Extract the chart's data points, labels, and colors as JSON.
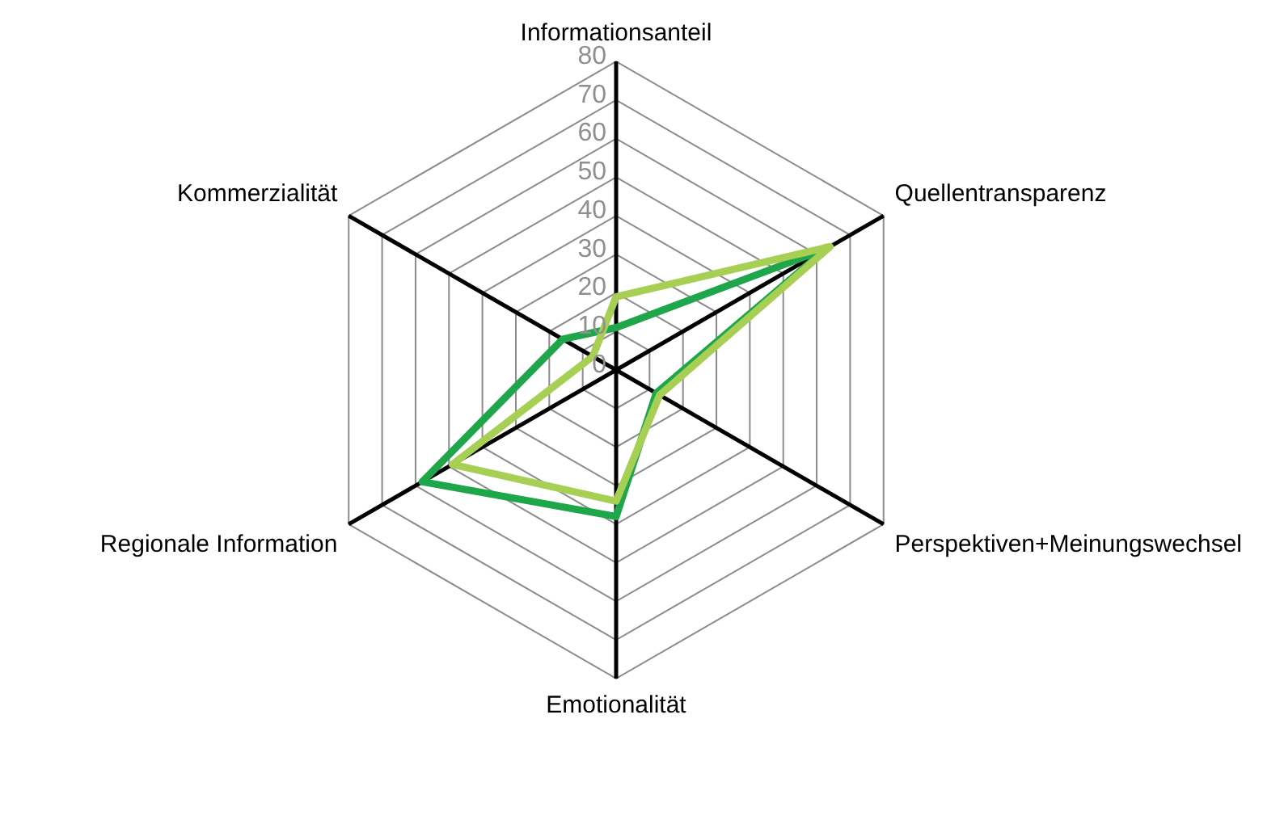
{
  "chart_data": {
    "type": "radar",
    "categories": [
      "Informationsanteil",
      "Quellentransparenz",
      "Perspektiven+Meinungswechsel",
      "Emotionalität",
      "Regionale Information",
      "Kommerzialität"
    ],
    "series": [
      {
        "color": "#a6cf54",
        "values": [
          19,
          64,
          13,
          34,
          49,
          7
        ]
      },
      {
        "color": "#1fa64a",
        "values": [
          11,
          63,
          12,
          38,
          58,
          16
        ]
      }
    ],
    "ylim": [
      0,
      80
    ],
    "yticks": [
      0,
      10,
      20,
      30,
      40,
      50,
      60,
      70,
      80
    ],
    "grid": true,
    "marker": "none",
    "line_style": "solid"
  }
}
